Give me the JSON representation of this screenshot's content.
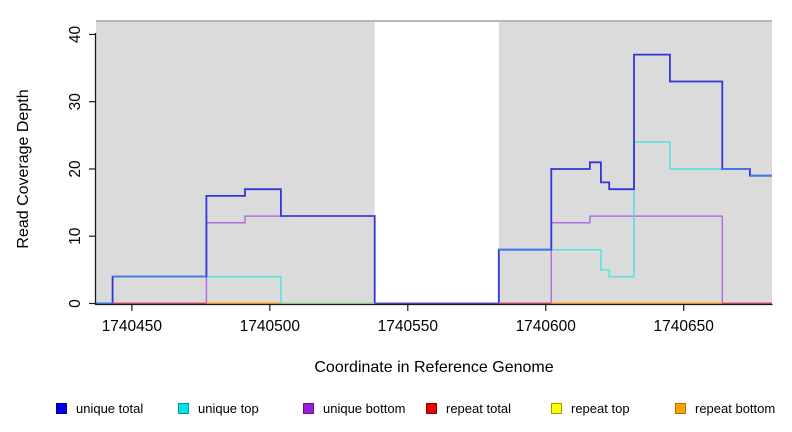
{
  "palette": {
    "band": "#DBDBDB",
    "cap_line": "#8F8F8F",
    "axis": "#1A1A1A",
    "unique_total": "#3434D8",
    "unique_top": "#55E0E6",
    "unique_bottom": "#B36FE0",
    "repeat_total": "#C94F66",
    "repeat_top": "#F2F21A",
    "repeat_bottom": "#FFA01E",
    "overlap_blue": "#3F7DE8",
    "overlap_indigo": "#5348DF",
    "overlap_green": "#A5D9A5"
  },
  "chart_data": {
    "type": "line",
    "subtype": "step-coverage",
    "title": "",
    "xlabel": "Coordinate in Reference Genome",
    "ylabel": "Read Coverage Depth",
    "x_range": [
      1740437,
      1740682
    ],
    "y_range": [
      0,
      42
    ],
    "coverage_cap_line": 42,
    "x_ticks": [
      {
        "value": 1740450,
        "label": "1740450"
      },
      {
        "value": 1740500,
        "label": "1740500"
      },
      {
        "value": 1740550,
        "label": "1740550"
      },
      {
        "value": 1740600,
        "label": "1740600"
      },
      {
        "value": 1740650,
        "label": "1740650"
      }
    ],
    "y_ticks": [
      {
        "value": 0,
        "label": "0"
      },
      {
        "value": 10,
        "label": "10"
      },
      {
        "value": 20,
        "label": "20"
      },
      {
        "value": 30,
        "label": "30"
      },
      {
        "value": 40,
        "label": "40"
      }
    ],
    "shaded_regions": [
      {
        "from": 1740437,
        "to": 1740538
      },
      {
        "from": 1740583,
        "to": 1740682
      }
    ],
    "series": [
      {
        "name": "repeat top",
        "key": "repeat_top",
        "segments": [
          [
            1740437,
            1740682,
            0
          ]
        ]
      },
      {
        "name": "repeat bottom",
        "key": "repeat_bottom",
        "segments": [
          [
            1740437,
            1740682,
            0
          ]
        ]
      },
      {
        "name": "repeat total",
        "key": "repeat_total",
        "segments": [
          [
            1740437,
            1740682,
            0
          ]
        ]
      },
      {
        "name": "unique bottom",
        "key": "unique_bottom",
        "segments": [
          [
            1740437,
            1740477,
            0
          ],
          [
            1740477,
            1740491,
            12
          ],
          [
            1740491,
            1740538,
            13
          ],
          [
            1740538,
            1740602,
            0
          ],
          [
            1740602,
            1740616,
            12
          ],
          [
            1740616,
            1740664,
            13
          ],
          [
            1740664,
            1740682,
            0
          ]
        ]
      },
      {
        "name": "unique top",
        "key": "unique_top",
        "segments": [
          [
            1740437,
            1740443,
            0
          ],
          [
            1740443,
            1740504,
            4
          ],
          [
            1740504,
            1740583,
            0
          ],
          [
            1740583,
            1740620,
            8
          ],
          [
            1740620,
            1740623,
            5
          ],
          [
            1740623,
            1740632,
            4
          ],
          [
            1740632,
            1740645,
            24
          ],
          [
            1740645,
            1740674,
            20
          ],
          [
            1740674,
            1740682,
            19
          ]
        ]
      },
      {
        "name": "unique total",
        "key": "unique_total",
        "segments": [
          [
            1740437,
            1740443,
            0
          ],
          [
            1740443,
            1740477,
            4
          ],
          [
            1740477,
            1740491,
            16
          ],
          [
            1740491,
            1740504,
            17
          ],
          [
            1740504,
            1740538,
            13
          ],
          [
            1740538,
            1740583,
            0
          ],
          [
            1740583,
            1740602,
            8
          ],
          [
            1740602,
            1740616,
            20
          ],
          [
            1740616,
            1740620,
            21
          ],
          [
            1740620,
            1740623,
            18
          ],
          [
            1740623,
            1740632,
            17
          ],
          [
            1740632,
            1740645,
            37
          ],
          [
            1740645,
            1740664,
            33
          ],
          [
            1740664,
            1740674,
            20
          ],
          [
            1740674,
            1740682,
            19
          ]
        ]
      }
    ],
    "overlap_segments": [
      {
        "from": 1740437,
        "to": 1740443,
        "value": 0,
        "color": "overlap_blue"
      },
      {
        "from": 1740443,
        "to": 1740477,
        "value": 0,
        "color": "repeat_total"
      },
      {
        "from": 1740477,
        "to": 1740504,
        "value": 0,
        "color": "repeat_bottom"
      },
      {
        "from": 1740504,
        "to": 1740538,
        "value": 0,
        "color": "overlap_green"
      },
      {
        "from": 1740538,
        "to": 1740583,
        "value": 0,
        "color": "overlap_indigo"
      },
      {
        "from": 1740583,
        "to": 1740602,
        "value": 0,
        "color": "repeat_total"
      },
      {
        "from": 1740602,
        "to": 1740664,
        "value": 0,
        "color": "repeat_bottom"
      },
      {
        "from": 1740664,
        "to": 1740682,
        "value": 0,
        "color": "repeat_total"
      },
      {
        "from": 1740443,
        "to": 1740477,
        "value": 4,
        "color": "overlap_blue"
      },
      {
        "from": 1740504,
        "to": 1740538,
        "value": 13,
        "color": "overlap_indigo"
      },
      {
        "from": 1740583,
        "to": 1740602,
        "value": 8,
        "color": "overlap_blue"
      },
      {
        "from": 1740664,
        "to": 1740674,
        "value": 20,
        "color": "overlap_blue"
      },
      {
        "from": 1740674,
        "to": 1740682,
        "value": 19,
        "color": "overlap_blue"
      }
    ],
    "legend": [
      {
        "label": "unique total",
        "fill": "#0000EE",
        "border": "#000090"
      },
      {
        "label": "unique top",
        "fill": "#00E6E6",
        "border": "#009898"
      },
      {
        "label": "unique bottom",
        "fill": "#9A1ED2",
        "border": "#6A1092"
      },
      {
        "label": "repeat total",
        "fill": "#EE0000",
        "border": "#900000"
      },
      {
        "label": "repeat top",
        "fill": "#FFFF00",
        "border": "#9C9C00"
      },
      {
        "label": "repeat bottom",
        "fill": "#FFA300",
        "border": "#B06D00"
      }
    ]
  }
}
